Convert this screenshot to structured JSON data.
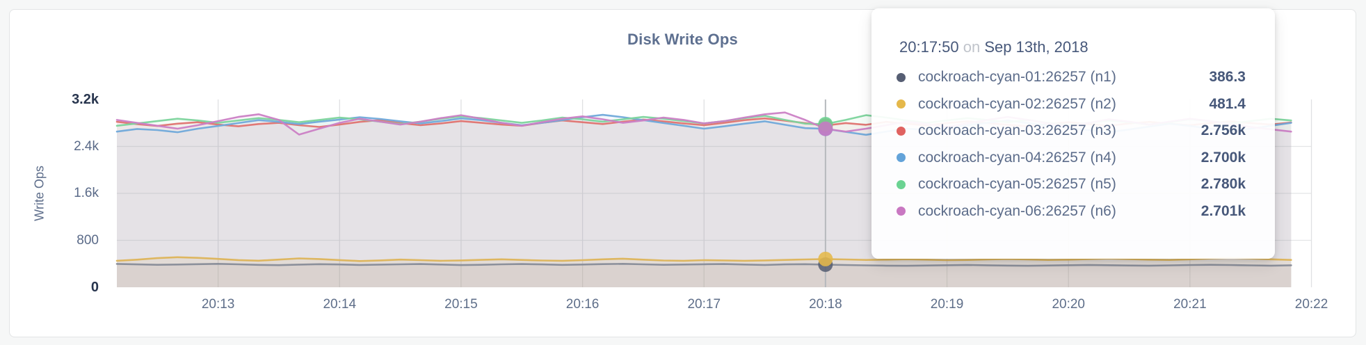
{
  "page": {
    "background": "#f6f7f7"
  },
  "card": {
    "background": "#ffffff",
    "border_color": "#e2e4e5"
  },
  "chart_data": {
    "type": "line",
    "title": "Disk Write Ops",
    "ylabel": "Write Ops",
    "xlabel": "",
    "ylim": [
      0,
      3200
    ],
    "grid": true,
    "legend_position": "tooltip-overlay",
    "x_ticks": [
      "20:13",
      "20:14",
      "20:15",
      "20:16",
      "20:17",
      "20:18",
      "20:19",
      "20:20",
      "20:21",
      "20:22"
    ],
    "y_ticks": [
      {
        "label": "3.2k",
        "value": 3200
      },
      {
        "label": "2.4k",
        "value": 2400
      },
      {
        "label": "1.6k",
        "value": 1600
      },
      {
        "label": "800",
        "value": 800
      },
      {
        "label": "0",
        "value": 0
      }
    ],
    "x_start": "20:12:10",
    "x_step_seconds": 10,
    "hover_index": 35,
    "crosshair_color": "#b6b9bd",
    "series": [
      {
        "name": "cockroach-cyan-01:26257 (n1)",
        "id": "n1",
        "color": "#565e73",
        "line_color": "#878c98",
        "fill_opacity": 0.1,
        "values": [
          398,
          390,
          383,
          388,
          394,
          399,
          391,
          382,
          377,
          386,
          394,
          389,
          381,
          386,
          391,
          396,
          387,
          378,
          383,
          391,
          396,
          390,
          382,
          387,
          395,
          400,
          391,
          383,
          387,
          392,
          396,
          388,
          381,
          390,
          393,
          386.3,
          379,
          373,
          369,
          366,
          371,
          376,
          381,
          375,
          370,
          366,
          371,
          376,
          381,
          376,
          371,
          369,
          373,
          379,
          383,
          379,
          373,
          369,
          374
        ]
      },
      {
        "name": "cockroach-cyan-02:26257 (n2)",
        "id": "n2",
        "color": "#e5b84a",
        "line_color": "#ddb458",
        "fill_opacity": 0.13,
        "values": [
          452,
          471,
          496,
          512,
          501,
          483,
          464,
          453,
          472,
          492,
          481,
          463,
          447,
          457,
          472,
          462,
          452,
          457,
          467,
          477,
          466,
          456,
          451,
          462,
          477,
          487,
          471,
          456,
          451,
          462,
          458,
          452,
          458,
          466,
          474,
          481.4,
          474,
          466,
          470,
          478,
          470,
          462,
          466,
          474,
          482,
          474,
          466,
          471,
          481,
          491,
          481,
          470,
          466,
          476,
          491,
          501,
          491,
          476,
          466
        ]
      },
      {
        "name": "cockroach-cyan-03:26257 (n3)",
        "id": "n3",
        "color": "#e06260",
        "line_color": "#df7370",
        "fill_opacity": 0.08,
        "values": [
          2820,
          2780,
          2748,
          2788,
          2812,
          2772,
          2742,
          2782,
          2802,
          2762,
          2732,
          2772,
          2818,
          2848,
          2798,
          2762,
          2792,
          2832,
          2802,
          2772,
          2752,
          2802,
          2842,
          2812,
          2782,
          2822,
          2858,
          2828,
          2792,
          2762,
          2802,
          2848,
          2878,
          2838,
          2798,
          2756,
          2798,
          2768,
          2818,
          2788,
          2758,
          2798,
          2828,
          2798,
          2768,
          2742,
          2782,
          2812,
          2782,
          2752,
          2792,
          2818,
          2788,
          2762,
          2798,
          2828,
          2798,
          2772,
          2808
        ]
      },
      {
        "name": "cockroach-cyan-04:26257 (n4)",
        "id": "n4",
        "color": "#63a3d9",
        "line_color": "#70a9da",
        "fill_opacity": 0.08,
        "values": [
          2652,
          2698,
          2678,
          2642,
          2702,
          2748,
          2798,
          2848,
          2818,
          2782,
          2822,
          2858,
          2898,
          2868,
          2828,
          2792,
          2832,
          2878,
          2848,
          2802,
          2762,
          2802,
          2848,
          2898,
          2938,
          2898,
          2848,
          2798,
          2752,
          2702,
          2742,
          2788,
          2828,
          2768,
          2712,
          2700,
          2648,
          2598,
          2652,
          2702,
          2682,
          2722,
          2762,
          2802,
          2842,
          2798,
          2758,
          2718,
          2678,
          2642,
          2688,
          2738,
          2788,
          2748,
          2702,
          2662,
          2702,
          2752,
          2802
        ]
      },
      {
        "name": "cockroach-cyan-05:26257 (n5)",
        "id": "n5",
        "color": "#6bd392",
        "line_color": "#7cd49c",
        "fill_opacity": 0.08,
        "values": [
          2752,
          2792,
          2832,
          2872,
          2842,
          2802,
          2842,
          2882,
          2852,
          2812,
          2852,
          2892,
          2862,
          2822,
          2782,
          2822,
          2872,
          2912,
          2882,
          2842,
          2802,
          2842,
          2892,
          2862,
          2822,
          2862,
          2902,
          2872,
          2832,
          2792,
          2832,
          2882,
          2922,
          2852,
          2788,
          2780,
          2852,
          2932,
          2892,
          2842,
          2802,
          2842,
          2882,
          2852,
          2812,
          2852,
          2802,
          2762,
          2802,
          2842,
          2812,
          2772,
          2812,
          2862,
          2832,
          2792,
          2832,
          2872,
          2842
        ]
      },
      {
        "name": "cockroach-cyan-06:26257 (n6)",
        "id": "n6",
        "color": "#c978c2",
        "line_color": "#cb80c5",
        "fill_opacity": 0.08,
        "values": [
          2852,
          2802,
          2752,
          2702,
          2762,
          2832,
          2902,
          2948,
          2852,
          2602,
          2702,
          2802,
          2872,
          2822,
          2772,
          2822,
          2882,
          2932,
          2872,
          2802,
          2752,
          2812,
          2872,
          2912,
          2862,
          2802,
          2842,
          2892,
          2852,
          2792,
          2832,
          2892,
          2948,
          2978,
          2852,
          2701,
          2652,
          2702,
          2762,
          2822,
          2782,
          2732,
          2792,
          2852,
          2902,
          2852,
          2792,
          2742,
          2802,
          2862,
          2822,
          2772,
          2822,
          2872,
          2832,
          2782,
          2732,
          2692,
          2652
        ]
      }
    ]
  },
  "tooltip": {
    "time": "20:17:50",
    "preposition": "on",
    "date": "Sep 13th, 2018",
    "rows": [
      {
        "label": "cockroach-cyan-01:26257 (n1)",
        "value": "386.3",
        "color": "#565e73"
      },
      {
        "label": "cockroach-cyan-02:26257 (n2)",
        "value": "481.4",
        "color": "#e5b84a"
      },
      {
        "label": "cockroach-cyan-03:26257 (n3)",
        "value": "2.756k",
        "color": "#e06260"
      },
      {
        "label": "cockroach-cyan-04:26257 (n4)",
        "value": "2.700k",
        "color": "#63a3d9"
      },
      {
        "label": "cockroach-cyan-05:26257 (n5)",
        "value": "2.780k",
        "color": "#6bd392"
      },
      {
        "label": "cockroach-cyan-06:26257 (n6)",
        "value": "2.701k",
        "color": "#c978c2"
      }
    ]
  }
}
